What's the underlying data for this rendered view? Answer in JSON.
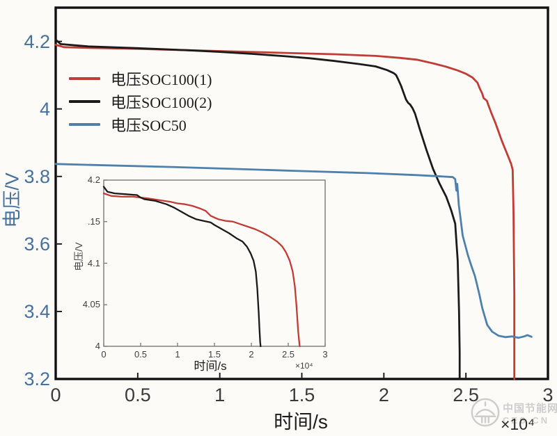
{
  "legend": {
    "items": [
      {
        "label": "电压SOC100(1)",
        "color": "#c23b35"
      },
      {
        "label": "电压SOC100(2)",
        "color": "#1a1a1a"
      },
      {
        "label": "电压SOC50",
        "color": "#4e80ad"
      }
    ]
  },
  "watermark": {
    "site_name": "中国节能网",
    "site_abbr": "CES.CN"
  },
  "chart_data": [
    {
      "id": "main",
      "type": "line",
      "title": "",
      "xlabel": "时间/s",
      "ylabel": "电压/V",
      "x_scale_label": "×10⁴",
      "xlim": [
        0,
        3
      ],
      "ylim": [
        3.2,
        4.3
      ],
      "grid": false,
      "legend_position": "upper-left-inside",
      "xticks": {
        "values": [
          0,
          0.5,
          1,
          1.5,
          2,
          2.5,
          3
        ],
        "labels": [
          "0",
          "0.5",
          "1",
          "1.5",
          "2",
          "2.5",
          "3"
        ]
      },
      "yticks": {
        "values": [
          3.2,
          3.4,
          3.6,
          3.8,
          4,
          4.2
        ],
        "labels": [
          "3.2",
          "3.4",
          "3.6",
          "3.8",
          "4",
          "4.2"
        ]
      },
      "series": [
        {
          "name": "电压SOC100(1)",
          "color": "#c23b35",
          "width": 2.8,
          "x": [
            0,
            0.05,
            0.2,
            0.5,
            0.8,
            1.1,
            1.4,
            1.7,
            1.95,
            2.1,
            2.2,
            2.3,
            2.38,
            2.45,
            2.5,
            2.54,
            2.57,
            2.585,
            2.6,
            2.608,
            2.618,
            2.628,
            2.638,
            2.655,
            2.68,
            2.72,
            2.755,
            2.775,
            2.785,
            2.79,
            2.795,
            2.795
          ],
          "y": [
            4.19,
            4.183,
            4.181,
            4.178,
            4.174,
            4.17,
            4.166,
            4.162,
            4.157,
            4.151,
            4.146,
            4.135,
            4.125,
            4.114,
            4.104,
            4.093,
            4.078,
            4.06,
            4.045,
            4.032,
            4.028,
            4.024,
            4.01,
            3.988,
            3.958,
            3.904,
            3.862,
            3.838,
            3.82,
            3.7,
            3.45,
            3.2
          ]
        },
        {
          "name": "电压SOC100(2)",
          "color": "#1a1a1a",
          "width": 2.8,
          "x": [
            0,
            0.03,
            0.2,
            0.5,
            0.8,
            1.0,
            1.2,
            1.4,
            1.55,
            1.7,
            1.85,
            1.95,
            2.02,
            2.06,
            2.075,
            2.09,
            2.105,
            2.12,
            2.135,
            2.148,
            2.16,
            2.175,
            2.19,
            2.22,
            2.26,
            2.3,
            2.34,
            2.38,
            2.41,
            2.435,
            2.45,
            2.458,
            2.462,
            2.462
          ],
          "y": [
            4.205,
            4.192,
            4.185,
            4.18,
            4.174,
            4.169,
            4.163,
            4.156,
            4.15,
            4.142,
            4.133,
            4.126,
            4.115,
            4.106,
            4.1,
            4.085,
            4.068,
            4.048,
            4.028,
            4.018,
            4.013,
            4.002,
            3.986,
            3.938,
            3.878,
            3.822,
            3.778,
            3.74,
            3.7,
            3.66,
            3.55,
            3.4,
            3.28,
            3.2
          ]
        },
        {
          "name": "电压SOC50",
          "color": "#4e80ad",
          "width": 2.8,
          "x": [
            0,
            0.3,
            0.7,
            1.1,
            1.5,
            1.9,
            2.2,
            2.35,
            2.42,
            2.435,
            2.442,
            2.447,
            2.452,
            2.457,
            2.465,
            2.48,
            2.512,
            2.534,
            2.555,
            2.58,
            2.6,
            2.63,
            2.66,
            2.7,
            2.74,
            2.78,
            2.82,
            2.855,
            2.875,
            2.9
          ],
          "y": [
            3.837,
            3.833,
            3.828,
            3.822,
            3.816,
            3.81,
            3.804,
            3.8,
            3.798,
            3.792,
            3.758,
            3.778,
            3.745,
            3.715,
            3.685,
            3.625,
            3.567,
            3.534,
            3.505,
            3.455,
            3.41,
            3.36,
            3.34,
            3.328,
            3.324,
            3.326,
            3.322,
            3.326,
            3.33,
            3.325
          ]
        }
      ]
    },
    {
      "id": "inset",
      "type": "line",
      "title": "",
      "xlabel": "时间/s",
      "ylabel": "电压/V",
      "x_scale_label": "×10⁴",
      "xlim": [
        0,
        3
      ],
      "ylim": [
        4,
        4.2
      ],
      "grid": false,
      "xticks": {
        "values": [
          0,
          0.5,
          1,
          1.5,
          2,
          2.5,
          3
        ],
        "labels": [
          "0",
          "0.5",
          "1",
          "1.5",
          "2",
          "2.5",
          "3"
        ]
      },
      "yticks": {
        "values": [
          4,
          4.05,
          4.1,
          4.15,
          4.2
        ],
        "labels": [
          "4",
          "4.05",
          "4.1",
          ".15",
          "4.2"
        ]
      },
      "series": [
        {
          "name": "电压SOC100(1)",
          "color": "#c23b35",
          "width": 2.3,
          "x": [
            0,
            0.1,
            0.25,
            0.4,
            0.5,
            0.6,
            0.75,
            0.9,
            1.0,
            1.1,
            1.2,
            1.3,
            1.38,
            1.45,
            1.55,
            1.65,
            1.75,
            1.85,
            1.95,
            2.05,
            2.15,
            2.25,
            2.35,
            2.42,
            2.47,
            2.52,
            2.56,
            2.59,
            2.61,
            2.625,
            2.635,
            2.645,
            2.655
          ],
          "y": [
            4.184,
            4.181,
            4.18,
            4.18,
            4.179,
            4.178,
            4.176,
            4.174,
            4.172,
            4.171,
            4.169,
            4.166,
            4.163,
            4.157,
            4.153,
            4.151,
            4.15,
            4.147,
            4.144,
            4.141,
            4.137,
            4.132,
            4.126,
            4.12,
            4.113,
            4.103,
            4.09,
            4.072,
            4.05,
            4.03,
            4.018,
            4.008,
            4.0
          ]
        },
        {
          "name": "电压SOC100(2)",
          "color": "#1a1a1a",
          "width": 2.3,
          "x": [
            0,
            0.05,
            0.15,
            0.3,
            0.45,
            0.5,
            0.55,
            0.7,
            0.85,
            0.95,
            1.05,
            1.15,
            1.25,
            1.35,
            1.45,
            1.5,
            1.6,
            1.7,
            1.8,
            1.88,
            1.94,
            1.99,
            2.03,
            2.06,
            2.08,
            2.1,
            2.11,
            2.12,
            2.125
          ],
          "y": [
            4.192,
            4.186,
            4.184,
            4.183,
            4.182,
            4.179,
            4.177,
            4.175,
            4.171,
            4.167,
            4.162,
            4.157,
            4.153,
            4.151,
            4.149,
            4.146,
            4.141,
            4.136,
            4.13,
            4.126,
            4.12,
            4.112,
            4.103,
            4.09,
            4.07,
            4.04,
            4.02,
            4.005,
            4.0
          ]
        }
      ]
    }
  ]
}
